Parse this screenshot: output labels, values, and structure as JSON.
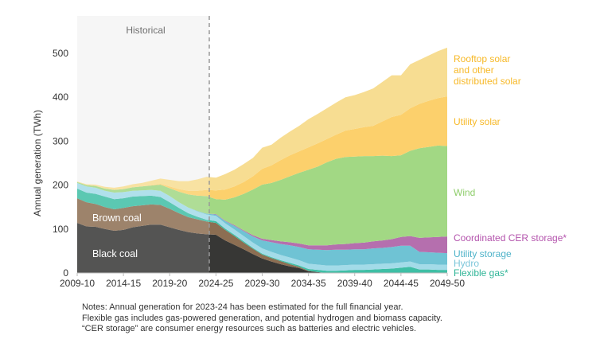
{
  "chart_data": {
    "type": "area",
    "stacked": true,
    "ylabel": "Annual generation (TWh)",
    "xlabel": "",
    "ylim": [
      0,
      500
    ],
    "yticks": [
      0,
      100,
      200,
      300,
      400,
      500
    ],
    "xtick_labels": [
      "2009-10",
      "2014-15",
      "2019-20",
      "2024-25",
      "2029-30",
      "2034-35",
      "2039-40",
      "2044-45",
      "2049-50"
    ],
    "x_start_year": 2009,
    "x_end_year": 2049,
    "historical_label": "Historical",
    "historical_end": "2023-24",
    "grid": false,
    "series": [
      {
        "name": "Black coal",
        "color": "#373735",
        "label_inside": true,
        "values": [
          114,
          106,
          105,
          100,
          96,
          98,
          104,
          107,
          110,
          110,
          104,
          98,
          93,
          90,
          88,
          87,
          74,
          64,
          54,
          43,
          33,
          26,
          20,
          15,
          11,
          4,
          2,
          0,
          0,
          0,
          0,
          0,
          0,
          0,
          0,
          0,
          0,
          0,
          0,
          0,
          0
        ]
      },
      {
        "name": "Brown coal",
        "color": "#8c6e52",
        "label_inside": true,
        "values": [
          56,
          55,
          52,
          50,
          49,
          50,
          48,
          47,
          46,
          45,
          42,
          38,
          34,
          32,
          29,
          27,
          24,
          20,
          15,
          12,
          9,
          8,
          7,
          5,
          3,
          1,
          0,
          0,
          0,
          0,
          0,
          0,
          0,
          0,
          0,
          0,
          0,
          0,
          0,
          0,
          0
        ]
      },
      {
        "name": "Flexible gas*",
        "color": "#3fbfa5",
        "label_color": "#2fb597",
        "values": [
          22,
          22,
          23,
          24,
          23,
          22,
          22,
          21,
          20,
          18,
          15,
          12,
          9,
          6,
          4,
          4,
          3,
          3,
          3,
          2,
          2,
          2,
          2,
          3,
          3,
          4,
          5,
          5,
          5,
          6,
          7,
          7,
          8,
          9,
          10,
          12,
          14,
          8,
          8,
          7,
          7
        ]
      },
      {
        "name": "Hydro",
        "color": "#a3dbe8",
        "label_color": "#7cc6da",
        "values": [
          13,
          14,
          14,
          13,
          15,
          14,
          13,
          13,
          13,
          14,
          14,
          13,
          13,
          12,
          12,
          12,
          12,
          12,
          12,
          12,
          12,
          12,
          12,
          12,
          12,
          12,
          12,
          12,
          12,
          12,
          12,
          12,
          12,
          12,
          12,
          12,
          12,
          12,
          12,
          12,
          12
        ]
      },
      {
        "name": "Utility storage",
        "color": "#6fc3d4",
        "label_color": "#4fb3c9",
        "values": [
          0,
          0,
          0,
          0,
          0,
          0,
          0,
          0,
          0,
          0,
          0,
          0,
          0,
          1,
          2,
          3,
          5,
          8,
          11,
          14,
          18,
          22,
          25,
          28,
          30,
          33,
          34,
          35,
          36,
          35,
          35,
          35,
          36,
          36,
          37,
          38,
          36,
          28,
          27,
          27,
          26
        ]
      },
      {
        "name": "Coordinated CER storage*",
        "color": "#b56fae",
        "label_color": "#b454ad",
        "values": [
          0,
          0,
          0,
          0,
          0,
          0,
          0,
          0,
          0,
          0,
          0,
          0,
          0,
          0,
          0,
          1,
          1,
          2,
          2,
          3,
          4,
          5,
          6,
          7,
          8,
          9,
          10,
          11,
          12,
          13,
          14,
          15,
          16,
          17,
          18,
          20,
          22,
          32,
          34,
          36,
          38
        ]
      },
      {
        "name": "Wind",
        "color": "#a2d884",
        "label_color": "#8fce6c",
        "values": [
          2,
          3,
          4,
          5,
          6,
          7,
          8,
          9,
          10,
          14,
          18,
          24,
          30,
          35,
          40,
          34,
          48,
          63,
          83,
          104,
          123,
          130,
          140,
          150,
          161,
          172,
          179,
          189,
          195,
          198,
          197,
          197,
          194,
          193,
          189,
          186,
          194,
          204,
          206,
          208,
          206
        ]
      },
      {
        "name": "Utility solar",
        "color": "#fcd06c",
        "label_color": "#f7b928",
        "values": [
          0,
          0,
          0,
          0,
          0,
          0,
          0,
          0,
          1,
          2,
          4,
          6,
          8,
          11,
          14,
          20,
          23,
          25,
          27,
          30,
          36,
          40,
          45,
          48,
          49,
          51,
          53,
          53,
          55,
          60,
          63,
          66,
          69,
          78,
          89,
          92,
          97,
          101,
          105,
          108,
          113
        ]
      },
      {
        "name": "Rooftop solar and other distributed solar",
        "color": "#f7dd92",
        "label_color": "#f7b928",
        "label_lines": [
          "Rooftop solar",
          "and other",
          "distributed solar"
        ],
        "values": [
          1,
          2,
          3,
          4,
          5,
          6,
          7,
          8,
          10,
          12,
          15,
          18,
          22,
          26,
          30,
          29,
          35,
          38,
          41,
          42,
          48,
          47,
          51,
          54,
          58,
          64,
          67,
          70,
          73,
          76,
          77,
          80,
          85,
          90,
          95,
          90,
          100,
          100,
          103,
          107,
          111
        ]
      }
    ],
    "inside_labels": {
      "brown_coal": "Brown coal",
      "black_coal": "Black coal"
    }
  },
  "notes": [
    "Notes: Annual generation for 2023-24 has been estimated for the full financial year.",
    "Flexible gas includes gas-powered generation, and potential hydrogen and biomass capacity.",
    "“CER storage” are consumer energy resources such as batteries and electric vehicles."
  ]
}
